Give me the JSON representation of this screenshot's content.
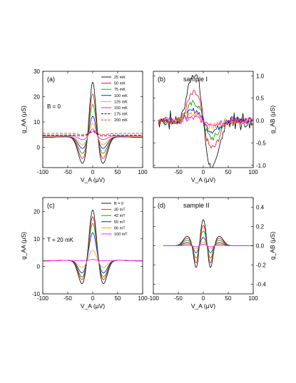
{
  "chart_data": [
    {
      "id": "a",
      "type": "line",
      "panel_label": "(a)",
      "annotation": "B = 0",
      "xlabel": "V_A (μV)",
      "ylabel": "g_AA (μS)",
      "ylabel_side": "left",
      "xlim": [
        -100,
        100
      ],
      "ylim": [
        -8,
        30
      ],
      "xticks": [
        -100,
        -50,
        0,
        50,
        100
      ],
      "yticks": [
        0,
        10,
        20,
        30
      ],
      "legend_position": "top-right",
      "series": [
        {
          "name": "25 mK",
          "color": "#000000",
          "dash": "solid",
          "peak": 27.5,
          "dip": -6.5,
          "base": 4.0
        },
        {
          "name": "50 mK",
          "color": "#e01010",
          "dash": "solid",
          "peak": 22.5,
          "dip": -4.5,
          "base": 4.0
        },
        {
          "name": "75 mK",
          "color": "#009900",
          "dash": "solid",
          "peak": 18.0,
          "dip": -2.5,
          "base": 4.0
        },
        {
          "name": "100 mK",
          "color": "#0000cc",
          "dash": "solid",
          "peak": 13.0,
          "dip": -0.5,
          "base": 4.0
        },
        {
          "name": "125 mK",
          "color": "#ff9900",
          "dash": "solid",
          "peak": 10.0,
          "dip": 1.0,
          "base": 4.2
        },
        {
          "name": "150 mK",
          "color": "#ff00ff",
          "dash": "solid",
          "peak": 7.5,
          "dip": 3.0,
          "base": 4.5
        },
        {
          "name": "175 mK",
          "color": "#000000",
          "dash": "dashed",
          "peak": 6.5,
          "dip": 4.5,
          "base": 4.8
        },
        {
          "name": "200 mK",
          "color": "#e01010",
          "dash": "dashed",
          "peak": 6.0,
          "dip": 5.0,
          "base": 5.5
        }
      ]
    },
    {
      "id": "b",
      "type": "line",
      "panel_label": "(b)",
      "annotation": "sample I",
      "xlabel": "V_A (μV)",
      "ylabel": "g_AB (μS)",
      "ylabel_side": "right",
      "xlim": [
        -100,
        100
      ],
      "ylim": [
        -1.05,
        1.1
      ],
      "xticks": [
        -50,
        0,
        50,
        100
      ],
      "yticks": [
        -1.0,
        -0.5,
        0.0,
        0.5,
        1.0
      ],
      "ytick_labels": [
        "-1.0",
        "-0.5",
        "0.0",
        "0.5",
        "1.0"
      ],
      "xrange_data": [
        -90,
        100
      ],
      "series": [
        {
          "color": "#000000",
          "amp": 0.95,
          "noise": 0.09
        },
        {
          "color": "#e01010",
          "amp": 0.55,
          "noise": 0.08
        },
        {
          "color": "#009900",
          "amp": 0.35,
          "noise": 0.08
        },
        {
          "color": "#0000cc",
          "amp": 0.2,
          "noise": 0.07
        },
        {
          "color": "#ff9900",
          "amp": 0.12,
          "noise": 0.08
        },
        {
          "color": "#ff00ff",
          "amp": 0.05,
          "noise": 0.08
        }
      ]
    },
    {
      "id": "c",
      "type": "line",
      "panel_label": "(c)",
      "annotation": "T = 20 mK",
      "xlabel": "V_A (μV)",
      "ylabel": "g_AA (μS)",
      "ylabel_side": "left",
      "xlim": [
        -100,
        100
      ],
      "ylim": [
        -10,
        25
      ],
      "xticks": [
        -100,
        -50,
        0,
        50,
        100
      ],
      "yticks": [
        -10,
        0,
        10,
        20
      ],
      "legend_position": "top-right",
      "series": [
        {
          "name": "B = 0",
          "color": "#000000",
          "peak": 21.0,
          "dip": -6.5,
          "base": 2.0
        },
        {
          "name": "30 mT",
          "color": "#e01010",
          "peak": 18.5,
          "dip": -5.0,
          "base": 2.0
        },
        {
          "name": "42 mT",
          "color": "#009900",
          "peak": 16.0,
          "dip": -4.0,
          "base": 2.0
        },
        {
          "name": "55 mT",
          "color": "#0000cc",
          "peak": 12.5,
          "dip": -2.5,
          "base": 2.0
        },
        {
          "name": "66 mT",
          "color": "#ff9900",
          "peak": 6.0,
          "dip": -0.5,
          "base": 2.0
        },
        {
          "name": "100 mT",
          "color": "#ff00ff",
          "peak": 2.5,
          "dip": 2.0,
          "base": 2.0
        }
      ]
    },
    {
      "id": "d",
      "type": "line",
      "panel_label": "(d)",
      "annotation": "sample II",
      "xlabel": "V_A (μV)",
      "ylabel": "g_AB (μS)",
      "ylabel_side": "right",
      "xlim": [
        -100,
        100
      ],
      "ylim": [
        -0.5,
        0.5
      ],
      "xticks": [
        -100,
        -50,
        0,
        50,
        100
      ],
      "yticks": [
        -0.4,
        -0.2,
        0.0,
        0.2,
        0.4
      ],
      "ytick_labels": [
        "-0.4",
        "-0.2",
        "0.0",
        "0.2",
        "0.4"
      ],
      "xrange_data": [
        -80,
        100
      ],
      "series": [
        {
          "color": "#000000",
          "amp": 0.28
        },
        {
          "color": "#e01010",
          "amp": 0.22
        },
        {
          "color": "#009900",
          "amp": 0.16
        },
        {
          "color": "#0000cc",
          "amp": 0.09
        },
        {
          "color": "#ff9900",
          "amp": 0.04
        },
        {
          "color": "#ff00ff",
          "amp": 0.015
        }
      ]
    }
  ]
}
